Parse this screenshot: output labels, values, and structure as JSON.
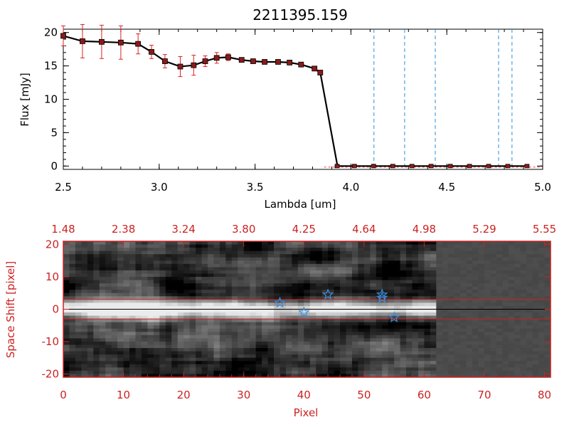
{
  "colors": {
    "axis": "#000000",
    "accent": "#cc2222",
    "marker": "#8b1a1a",
    "errorbar": "#dd2222",
    "dashed_line": "#2a8fd6",
    "star": "#3a8fe0"
  },
  "chart_data": [
    {
      "type": "line",
      "title": "2211395.159",
      "xlabel": "Lambda [um]",
      "ylabel": "Flux [mJy]",
      "xlim": [
        2.5,
        5.0
      ],
      "ylim": [
        -0.5,
        20.5
      ],
      "x_ticks": [
        "2.5",
        "3.0",
        "3.5",
        "4.0",
        "4.5",
        "5.0"
      ],
      "y_ticks": [
        "0",
        "5",
        "10",
        "15",
        "20"
      ],
      "series": [
        {
          "x": [
            2.5,
            2.6,
            2.7,
            2.8,
            2.89,
            2.96,
            3.03,
            3.11,
            3.18,
            3.24,
            3.3,
            3.36,
            3.43,
            3.49,
            3.55,
            3.62,
            3.68,
            3.74,
            3.81,
            3.84,
            3.93,
            4.02,
            4.12,
            4.22,
            4.32,
            4.42,
            4.52,
            4.62,
            4.72,
            4.82,
            4.92
          ],
          "y": [
            19.5,
            18.7,
            18.6,
            18.5,
            18.3,
            17.1,
            15.7,
            14.9,
            15.1,
            15.7,
            16.2,
            16.3,
            15.9,
            15.7,
            15.6,
            15.6,
            15.5,
            15.2,
            14.6,
            14.0,
            0,
            0,
            0,
            0,
            0,
            0,
            0,
            0,
            0,
            0,
            0
          ],
          "yerr": [
            1.5,
            2.5,
            2.5,
            2.5,
            1.5,
            1.0,
            1.0,
            1.5,
            1.5,
            0.8,
            0.8,
            0.5,
            0.3,
            0.3,
            0.3,
            0.3,
            0.3,
            0.3,
            0.3,
            0.3,
            0,
            0,
            0,
            0,
            0,
            0,
            0,
            0,
            0,
            0,
            0
          ]
        }
      ],
      "vertical_dashed_lines_x": [
        4.12,
        4.28,
        4.44,
        4.77,
        4.84
      ]
    },
    {
      "type": "heatmap",
      "xlabel": "Pixel",
      "ylabel": "Space Shift [pixel]",
      "xlim": [
        0,
        81
      ],
      "ylim": [
        -21,
        21
      ],
      "x_ticks": [
        "0",
        "10",
        "20",
        "30",
        "40",
        "50",
        "60",
        "70",
        "80"
      ],
      "y_ticks": [
        "-20",
        "-10",
        "0",
        "10",
        "20"
      ],
      "top_ticks": [
        "1.48",
        "2.38",
        "3.24",
        "3.80",
        "4.25",
        "4.64",
        "4.98",
        "5.29",
        "5.55"
      ],
      "horizontal_lines_y": [
        3,
        0,
        -3
      ],
      "stars": [
        {
          "x": 36,
          "y": 2
        },
        {
          "x": 40,
          "y": -1
        },
        {
          "x": 44,
          "y": 4.5
        },
        {
          "x": 53,
          "y": 4.5
        },
        {
          "x": 53,
          "y": 3.5
        },
        {
          "x": 55,
          "y": -2.5
        }
      ],
      "bright_columns_max": 62
    }
  ]
}
